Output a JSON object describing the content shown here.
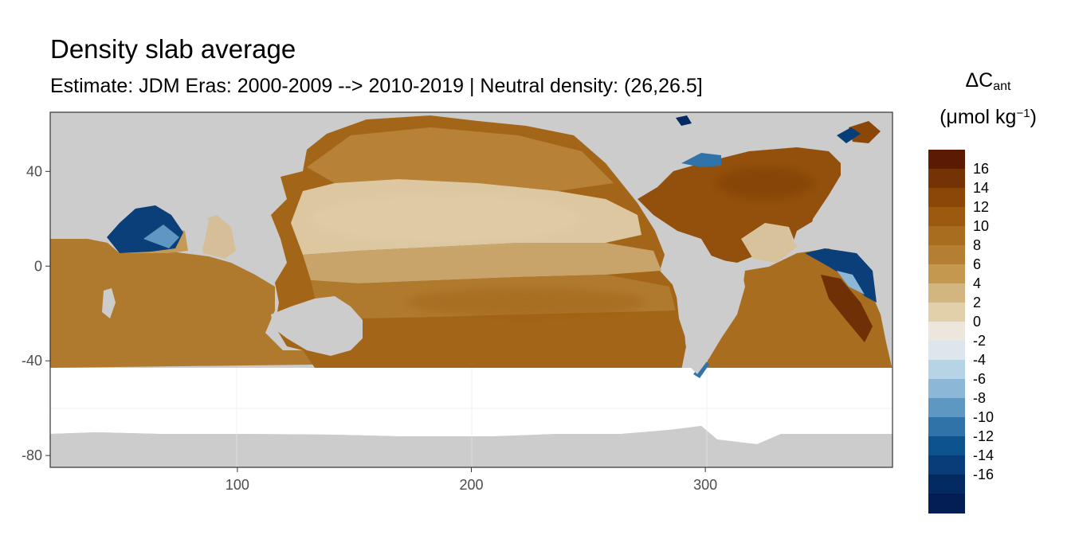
{
  "title": "Density slab average",
  "subtitle": "Estimate: JDM Eras: 2000-2009 --> 2010-2019 | Neutral density: (26,26.5]",
  "map": {
    "x_ticks": [
      "100",
      "200",
      "300"
    ],
    "y_ticks": [
      "40",
      "0",
      "-40",
      "-80"
    ],
    "x_range": [
      20,
      380
    ],
    "y_range": [
      -85,
      65
    ],
    "grid": true
  },
  "legend": {
    "title": "ΔC",
    "title_subscript": "ant",
    "unit_open": "(μmol kg",
    "unit_sup": "−1",
    "unit_close": ")",
    "labels": [
      "16",
      "14",
      "12",
      "10",
      "8",
      "6",
      "4",
      "2",
      "0",
      "-2",
      "-4",
      "-6",
      "-8",
      "-10",
      "-12",
      "-14",
      "-16"
    ],
    "colors": [
      "#5b1a02",
      "#733305",
      "#8a4707",
      "#9b5a10",
      "#a86d1f",
      "#b57f33",
      "#c4994f",
      "#d3b57f",
      "#e2d0ab",
      "#ece6dc",
      "#dce6ec",
      "#b7d3e6",
      "#8cb7d6",
      "#5d97c2",
      "#2f73a8",
      "#0d548f",
      "#073d78",
      "#042a62",
      "#021e55"
    ]
  },
  "colors": {
    "land": "#cccccc",
    "no_data": "#ffffff",
    "panel_border": "#333333",
    "grid": "#ebebeb"
  }
}
